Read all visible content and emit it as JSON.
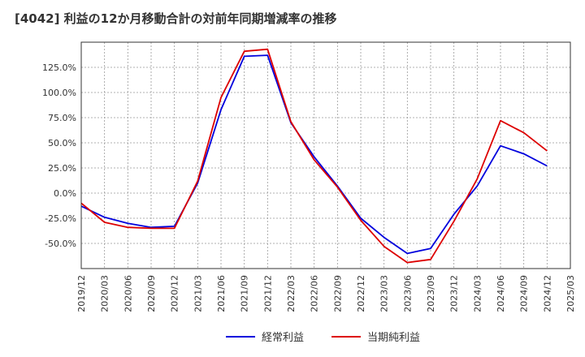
{
  "chart_data": {
    "type": "line",
    "title": "[4042]  利益の12か月移動合計の対前年同期増減率の推移",
    "xlabel": "",
    "ylabel": "",
    "ylim": [
      -75,
      150
    ],
    "yticks": [
      125,
      100,
      75,
      50,
      25,
      0,
      -25,
      -50
    ],
    "ytick_labels": [
      "125.0%",
      "100.0%",
      "75.0%",
      "50.0%",
      "25.0%",
      "0.0%",
      "-25.0%",
      "-50.0%"
    ],
    "x": [
      "2019/12",
      "2020/03",
      "2020/06",
      "2020/09",
      "2020/12",
      "2021/03",
      "2021/06",
      "2021/09",
      "2021/12",
      "2022/03",
      "2022/06",
      "2022/09",
      "2022/12",
      "2023/03",
      "2023/06",
      "2023/09",
      "2023/12",
      "2024/03",
      "2024/06",
      "2024/09",
      "2024/12",
      "2025/03"
    ],
    "grid": true,
    "legend_position": "bottom",
    "series": [
      {
        "name": "経常利益",
        "color": "#0000dd",
        "x": [
          "2019/12",
          "2020/03",
          "2020/06",
          "2020/09",
          "2020/12",
          "2021/03",
          "2021/06",
          "2021/09",
          "2021/12",
          "2022/03",
          "2022/06",
          "2022/09",
          "2022/12",
          "2023/03",
          "2023/06",
          "2023/09",
          "2023/12",
          "2024/03",
          "2024/06",
          "2024/09",
          "2024/12"
        ],
        "values": [
          -13,
          -24,
          -30,
          -34,
          -33,
          10,
          83,
          136,
          137,
          70,
          36,
          7,
          -25,
          -44,
          -60,
          -55,
          -21,
          7,
          47,
          39,
          27
        ]
      },
      {
        "name": "当期純利益",
        "color": "#dd0000",
        "x": [
          "2019/12",
          "2020/03",
          "2020/06",
          "2020/09",
          "2020/12",
          "2021/03",
          "2021/06",
          "2021/09",
          "2021/12",
          "2022/03",
          "2022/06",
          "2022/09",
          "2022/12",
          "2023/03",
          "2023/06",
          "2023/09",
          "2023/12",
          "2024/03",
          "2024/06",
          "2024/09",
          "2024/12"
        ],
        "values": [
          -10,
          -29,
          -34,
          -35,
          -35,
          12,
          95,
          141,
          143,
          71,
          33,
          6,
          -27,
          -53,
          -69,
          -66,
          -28,
          14,
          72,
          60,
          42
        ]
      }
    ]
  }
}
